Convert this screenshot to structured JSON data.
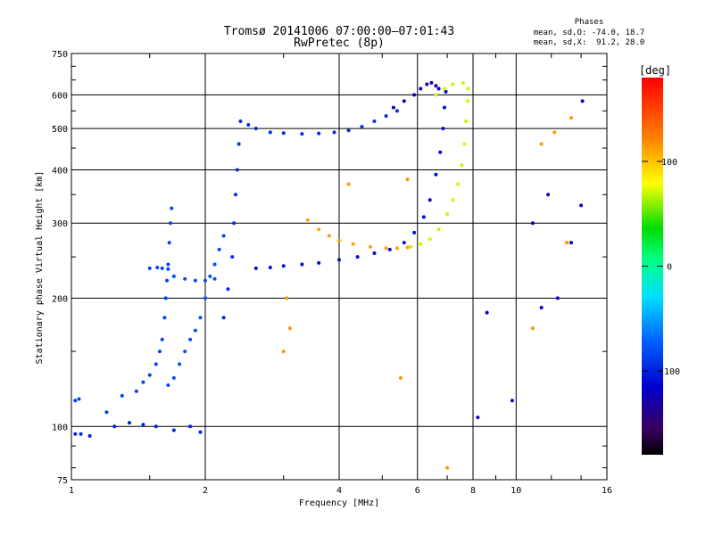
{
  "chart_data": {
    "type": "scatter",
    "title": "Tromsø 20141006 07:00:00–07:01:43",
    "subtitle": "RwPretec (8p)",
    "xlabel": "Frequency [MHz]",
    "ylabel": "Stationary phase Virtual Height [km]",
    "x_scale": "log",
    "y_scale": "log",
    "xlim": [
      1,
      16
    ],
    "ylim": [
      75,
      750
    ],
    "x_ticks": [
      1,
      2,
      4,
      6,
      8,
      10,
      16
    ],
    "x_tick_labels": [
      "1",
      "2",
      "4",
      "6",
      "8",
      "10",
      "16"
    ],
    "y_ticks": [
      75,
      100,
      200,
      300,
      400,
      500,
      600,
      750
    ],
    "y_tick_labels": [
      "75",
      "100",
      "200",
      "300",
      "400",
      "500",
      "600",
      "750"
    ],
    "grid": true,
    "phase_stats": {
      "heading": "Phases",
      "o_mode": "mean, sd,O: -74.0, 18.7",
      "x_mode": "mean, sd,X:  91.2, 28.0"
    },
    "colorbar": {
      "label": "[deg]",
      "min": -180,
      "max": 180,
      "ticks": [
        100,
        0,
        -100
      ],
      "tick_labels": [
        "100",
        "0",
        "-100"
      ]
    },
    "series": [
      {
        "phase": -100,
        "points": [
          [
            1.02,
            96
          ],
          [
            1.05,
            96
          ],
          [
            1.1,
            95
          ],
          [
            1.25,
            100
          ],
          [
            1.35,
            102
          ],
          [
            1.45,
            101
          ],
          [
            1.55,
            100
          ],
          [
            1.7,
            98
          ],
          [
            1.85,
            100
          ],
          [
            1.95,
            97
          ]
        ]
      },
      {
        "phase": -85,
        "points": [
          [
            1.02,
            115
          ],
          [
            1.04,
            116
          ],
          [
            1.2,
            108
          ],
          [
            1.3,
            118
          ],
          [
            1.4,
            121
          ],
          [
            1.45,
            127
          ],
          [
            1.5,
            132
          ],
          [
            1.55,
            140
          ],
          [
            1.58,
            150
          ],
          [
            1.6,
            160
          ],
          [
            1.62,
            180
          ],
          [
            1.63,
            200
          ],
          [
            1.64,
            220
          ],
          [
            1.65,
            240
          ],
          [
            1.66,
            270
          ],
          [
            1.67,
            300
          ],
          [
            1.68,
            325
          ],
          [
            1.5,
            235
          ],
          [
            1.56,
            236
          ],
          [
            1.6,
            235
          ],
          [
            1.65,
            234
          ]
        ]
      },
      {
        "phase": -80,
        "points": [
          [
            1.65,
            125
          ],
          [
            1.7,
            130
          ],
          [
            1.75,
            140
          ],
          [
            1.8,
            150
          ],
          [
            1.85,
            160
          ],
          [
            1.9,
            168
          ],
          [
            1.95,
            180
          ],
          [
            2.0,
            200
          ],
          [
            2.05,
            225
          ],
          [
            2.1,
            240
          ],
          [
            2.15,
            260
          ],
          [
            2.2,
            280
          ],
          [
            1.7,
            225
          ],
          [
            1.8,
            222
          ],
          [
            1.9,
            220
          ],
          [
            2.0,
            220
          ],
          [
            2.1,
            222
          ]
        ]
      },
      {
        "phase": -95,
        "points": [
          [
            2.2,
            180
          ],
          [
            2.25,
            210
          ],
          [
            2.3,
            250
          ],
          [
            2.32,
            300
          ],
          [
            2.34,
            350
          ],
          [
            2.36,
            400
          ],
          [
            2.38,
            460
          ],
          [
            2.4,
            520
          ],
          [
            2.5,
            510
          ],
          [
            2.6,
            500
          ],
          [
            2.8,
            490
          ],
          [
            3.0,
            488
          ],
          [
            3.3,
            486
          ],
          [
            3.6,
            487
          ],
          [
            3.9,
            490
          ],
          [
            4.2,
            495
          ],
          [
            4.5,
            505
          ],
          [
            4.8,
            520
          ],
          [
            5.1,
            535
          ],
          [
            5.4,
            550
          ]
        ]
      },
      {
        "phase": -110,
        "points": [
          [
            2.6,
            235
          ],
          [
            2.8,
            236
          ],
          [
            3.0,
            238
          ],
          [
            3.3,
            240
          ],
          [
            3.6,
            242
          ],
          [
            4.0,
            246
          ],
          [
            4.4,
            250
          ],
          [
            4.8,
            255
          ],
          [
            5.2,
            260
          ],
          [
            5.6,
            270
          ],
          [
            5.9,
            285
          ],
          [
            6.2,
            310
          ],
          [
            6.4,
            340
          ],
          [
            6.6,
            390
          ],
          [
            6.75,
            440
          ],
          [
            6.85,
            500
          ],
          [
            6.9,
            560
          ],
          [
            6.95,
            610
          ]
        ]
      },
      {
        "phase": -125,
        "points": [
          [
            5.3,
            560
          ],
          [
            5.6,
            580
          ],
          [
            5.9,
            600
          ],
          [
            6.1,
            620
          ],
          [
            6.3,
            635
          ],
          [
            6.45,
            640
          ],
          [
            6.6,
            630
          ],
          [
            6.7,
            620
          ]
        ]
      },
      {
        "phase": 110,
        "points": [
          [
            3.4,
            305
          ],
          [
            3.6,
            290
          ],
          [
            3.8,
            280
          ],
          [
            4.0,
            273
          ],
          [
            4.3,
            268
          ],
          [
            4.7,
            264
          ],
          [
            5.1,
            262
          ],
          [
            5.4,
            262
          ],
          [
            5.7,
            263
          ]
        ]
      },
      {
        "phase": 70,
        "points": [
          [
            5.8,
            264
          ],
          [
            6.1,
            268
          ],
          [
            6.4,
            275
          ],
          [
            6.7,
            290
          ],
          [
            7.0,
            315
          ],
          [
            7.2,
            340
          ],
          [
            7.4,
            370
          ],
          [
            7.55,
            410
          ],
          [
            7.65,
            460
          ],
          [
            7.72,
            520
          ],
          [
            7.78,
            580
          ],
          [
            7.8,
            620
          ],
          [
            7.6,
            640
          ],
          [
            7.2,
            635
          ],
          [
            6.9,
            620
          ],
          [
            6.6,
            600
          ]
        ]
      },
      {
        "phase": 115,
        "points": [
          [
            3.1,
            170
          ],
          [
            3.05,
            200
          ],
          [
            3.0,
            150
          ],
          [
            5.5,
            130
          ],
          [
            7.0,
            80
          ],
          [
            4.2,
            370
          ],
          [
            5.7,
            380
          ],
          [
            10.9,
            170
          ],
          [
            11.4,
            460
          ],
          [
            12.2,
            490
          ],
          [
            13.3,
            530
          ],
          [
            13.0,
            270
          ]
        ]
      },
      {
        "phase": -120,
        "points": [
          [
            8.2,
            105
          ],
          [
            8.6,
            185
          ],
          [
            9.8,
            115
          ],
          [
            10.9,
            300
          ],
          [
            11.8,
            350
          ],
          [
            12.4,
            200
          ],
          [
            13.3,
            270
          ],
          [
            14.0,
            330
          ],
          [
            14.1,
            580
          ],
          [
            11.4,
            190
          ]
        ]
      }
    ]
  }
}
